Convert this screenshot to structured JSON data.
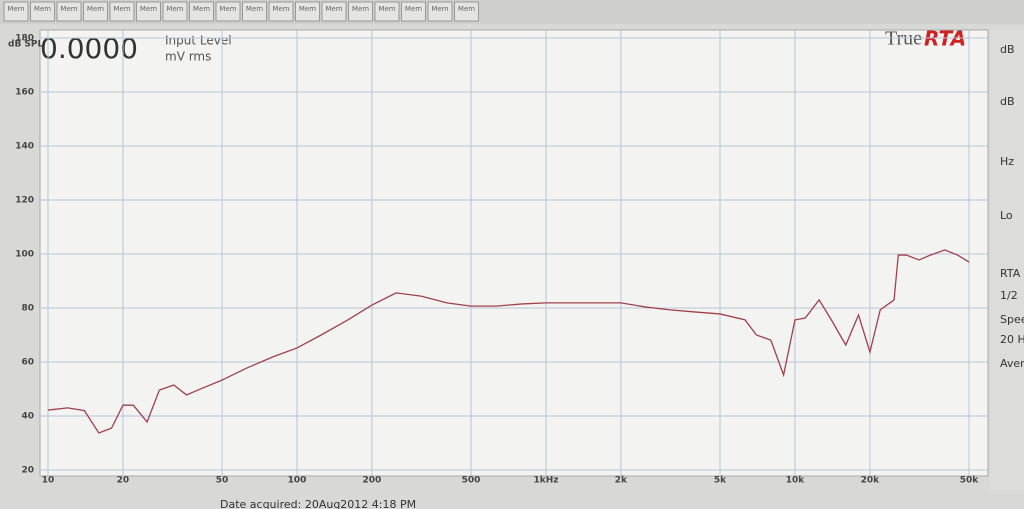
{
  "chart_data": {
    "type": "line",
    "y_label": "dB SPL",
    "x": [
      10,
      12,
      14,
      16,
      18,
      20,
      22,
      25,
      28,
      32,
      36,
      40,
      50,
      63,
      80,
      100,
      125,
      160,
      200,
      250,
      315,
      400,
      500,
      630,
      800,
      1000,
      1250,
      1600,
      2000,
      2500,
      3150,
      4000,
      5000,
      6300,
      7000,
      8000,
      9000,
      10000,
      11000,
      12500,
      14000,
      16000,
      18000,
      20000,
      22000,
      25000,
      26000,
      28000,
      31500,
      35000,
      40000,
      45000,
      50000
    ],
    "series": [
      {
        "color": "#a0404e",
        "values": [
          42.2,
          43,
          42,
          33.7,
          35.5,
          44,
          44,
          37.8,
          49.6,
          51.5,
          47.8,
          49.6,
          53.3,
          57.8,
          61.9,
          65.2,
          70,
          75.6,
          81.1,
          85.6,
          84.4,
          81.9,
          80.7,
          80.7,
          81.5,
          81.9,
          81.9,
          81.9,
          81.9,
          80.4,
          79.3,
          78.5,
          77.8,
          75.6,
          70,
          68.1,
          55.2,
          75.6,
          76.3,
          83,
          75.6,
          66.3,
          77.4,
          63.7,
          79.3,
          83,
          99.6,
          99.6,
          97.8,
          99.6,
          101.5,
          99.6,
          97
        ]
      }
    ],
    "xscale": "log",
    "xlim": [
      10,
      50000
    ],
    "xticks": [
      10,
      20,
      50,
      100,
      200,
      500,
      {
        "value": 1000,
        "label": "1kHz"
      },
      {
        "value": 2000,
        "label": "2k"
      },
      {
        "value": 5000,
        "label": "5k"
      },
      {
        "value": 10000,
        "label": "10k"
      },
      {
        "value": 20000,
        "label": "20k"
      },
      {
        "value": 50000,
        "label": "50k"
      }
    ],
    "ylim": [
      20,
      180
    ],
    "yticks": [
      20,
      40,
      60,
      80,
      100,
      120,
      140,
      160,
      180
    ],
    "grid": true
  },
  "ui": {
    "toolbar": [
      "Mem",
      "Mem",
      "Mem",
      "Mem",
      "Mem",
      "Mem",
      "Mem",
      "Mem",
      "Mem",
      "Mem",
      "Mem",
      "Mem",
      "Mem",
      "Mem",
      "Mem",
      "Mem",
      "Mem",
      "Mem"
    ],
    "reading": "0.0000",
    "reading_label": "Input Level",
    "reading_unit": "mV rms",
    "logo_a": "True",
    "logo_b": "RTA",
    "side": [
      "dB",
      "dB",
      "Hz",
      "Lo",
      "RTA",
      "1/2",
      "Spee",
      "20 H",
      "Aver"
    ],
    "status": "Date acquired: 20Aug2012 4:18 PM"
  }
}
